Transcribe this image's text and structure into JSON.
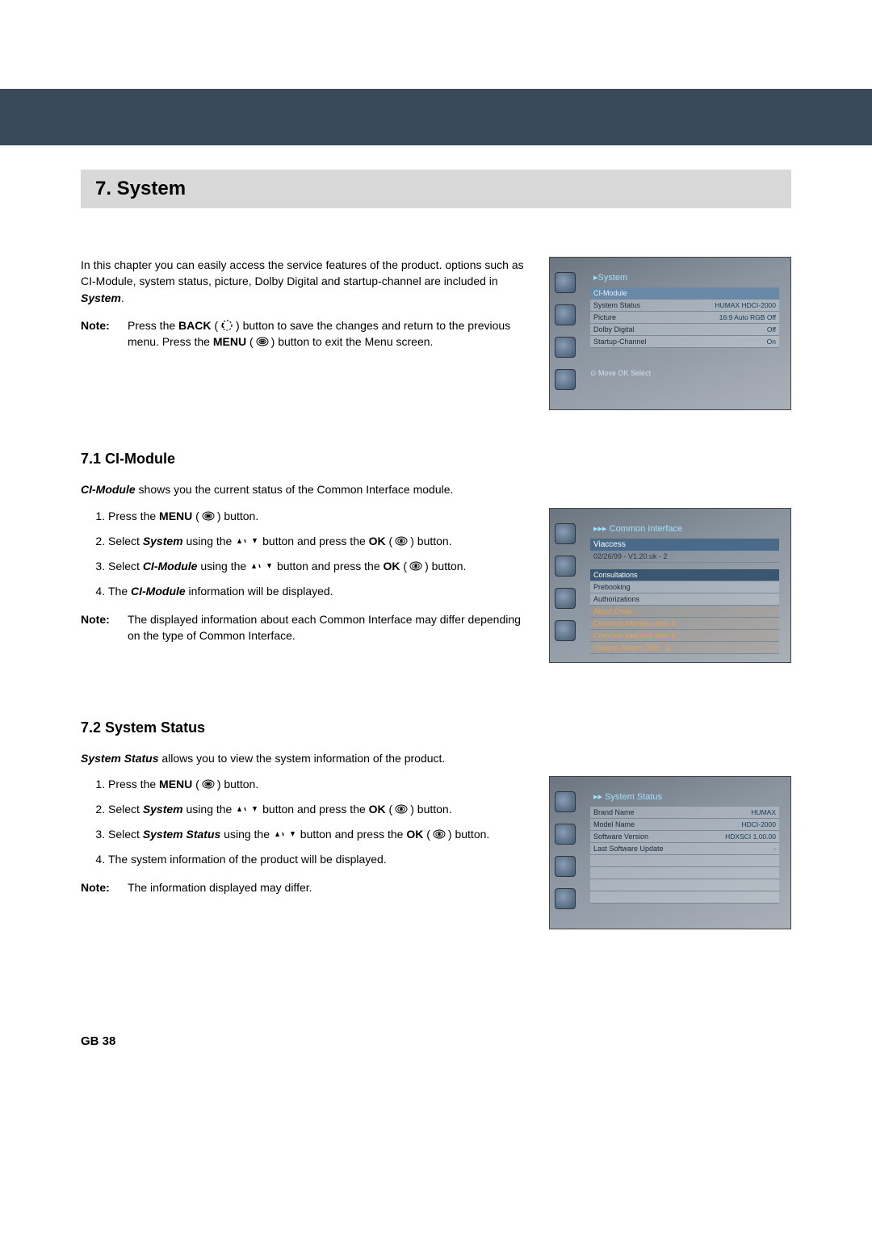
{
  "chapter": {
    "title": "7. System"
  },
  "intro": {
    "p1_a": "In this chapter you can easily access the service features of the product. options such as CI-Module, system status, picture, Dolby Digital and startup-channel are included in ",
    "p1_b": "System",
    "p1_c": ".",
    "note_label": "Note:",
    "note_a": "Press the ",
    "note_back": "BACK",
    "note_b": " button to save the changes and return to the previous menu. Press the ",
    "note_menu": "MENU",
    "note_c": " button to exit the Menu screen."
  },
  "shot1": {
    "title": "▸System",
    "rows": [
      {
        "k": "CI-Module",
        "v": "",
        "hl": true
      },
      {
        "k": "System Status",
        "v": "HUMAX HDCI-2000"
      },
      {
        "k": "Picture",
        "v": "16:9 Auto RGB Off"
      },
      {
        "k": "Dolby Digital",
        "v": "Off"
      },
      {
        "k": "Startup-Channel",
        "v": "On"
      }
    ],
    "hint": "⊙ Move  OK Select"
  },
  "sec71": {
    "heading": "7.1 CI-Module",
    "intro_a": "CI-Module",
    "intro_b": " shows you the current status of the Common Interface module.",
    "s1_a": "Press the ",
    "s1_b": "MENU",
    "s1_c": " button.",
    "s2_a": "Select ",
    "s2_b": "System",
    "s2_c": " using the ",
    "s2_d": " button and press the ",
    "s2_e": "OK",
    "s2_f": " button.",
    "s3_a": "Select ",
    "s3_b": "CI-Module",
    "s3_c": " using the ",
    "s3_d": " button and press the ",
    "s3_e": "OK",
    "s3_f": " button.",
    "s4_a": "The ",
    "s4_b": "CI-Module",
    "s4_c": " information will be displayed.",
    "note_label": "Note:",
    "note_body": "The displayed information about each Common Interface may differ depending on the type of Common Interface."
  },
  "shot2": {
    "title": "▸▸▸ Common Interface",
    "brand": "Viaccess",
    "ver": "02/26/99 - V1.20.uk - 2",
    "rows": [
      {
        "t": "Consultations",
        "hl": true
      },
      {
        "t": "Prebooking"
      },
      {
        "t": "Authorizations"
      },
      {
        "t": "About Order",
        "orange": true
      },
      {
        "t": "Common Interface Item 5",
        "orange": true
      },
      {
        "t": "Common Interface Item 6",
        "orange": true
      },
      {
        "t": "Viacess Bottom Title - 2",
        "orange": true
      }
    ]
  },
  "sec72": {
    "heading": "7.2 System Status",
    "intro_a": "System Status",
    "intro_b": " allows you to view the system information of the product.",
    "s1_a": "Press the ",
    "s1_b": "MENU",
    "s1_c": " button.",
    "s2_a": "Select ",
    "s2_b": "System",
    "s2_c": " using the ",
    "s2_d": " button and press the ",
    "s2_e": "OK",
    "s2_f": " button.",
    "s3_a": "Select ",
    "s3_b": "System Status",
    "s3_c": " using the ",
    "s3_d": " button and press the ",
    "s3_e": "OK",
    "s3_f": " button.",
    "s4": "The system information of the product will be displayed.",
    "note_label": "Note:",
    "note_body": "The information displayed may differ."
  },
  "shot3": {
    "title": "▸▸ System Status",
    "rows": [
      {
        "k": "Brand Name",
        "v": "HUMAX"
      },
      {
        "k": "Model Name",
        "v": "HDCI-2000"
      },
      {
        "k": "Software Version",
        "v": "HDXSCI 1.00.00"
      },
      {
        "k": "Last Software Update",
        "v": "-"
      }
    ]
  },
  "footer": "GB 38",
  "colors": {
    "heading_bg": "#d8d8d8",
    "banner_bg": "#3a4a5a",
    "sc_title": "#9fe0ff"
  }
}
